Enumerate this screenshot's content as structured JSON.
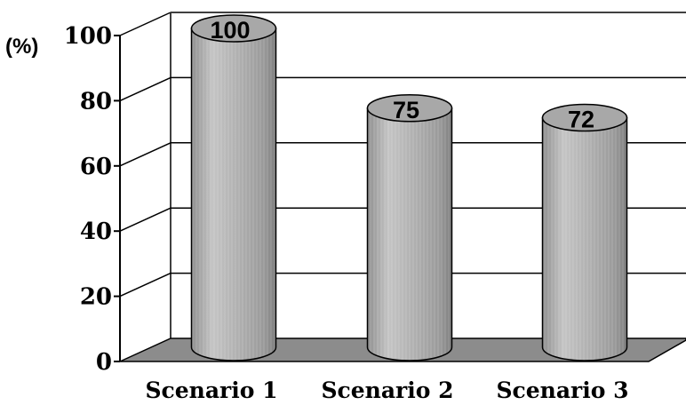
{
  "chart_data": {
    "type": "bar",
    "bar_shape": "cylinder",
    "categories": [
      "Scenario 1",
      "Scenario 2",
      "Scenario 3"
    ],
    "values": [
      100,
      75,
      72
    ],
    "data_labels": [
      "100",
      "75",
      "72"
    ],
    "unit_label": "(%)",
    "ylim": [
      0,
      100
    ],
    "yticks": [
      "0",
      "20",
      "40",
      "60",
      "80",
      "100"
    ],
    "grid": true,
    "legend": "none",
    "colors": {
      "bar": "#b4b4b4",
      "bar_top": "#a8a8a8",
      "floor": "#8c8c8c",
      "axis": "#000000"
    }
  }
}
